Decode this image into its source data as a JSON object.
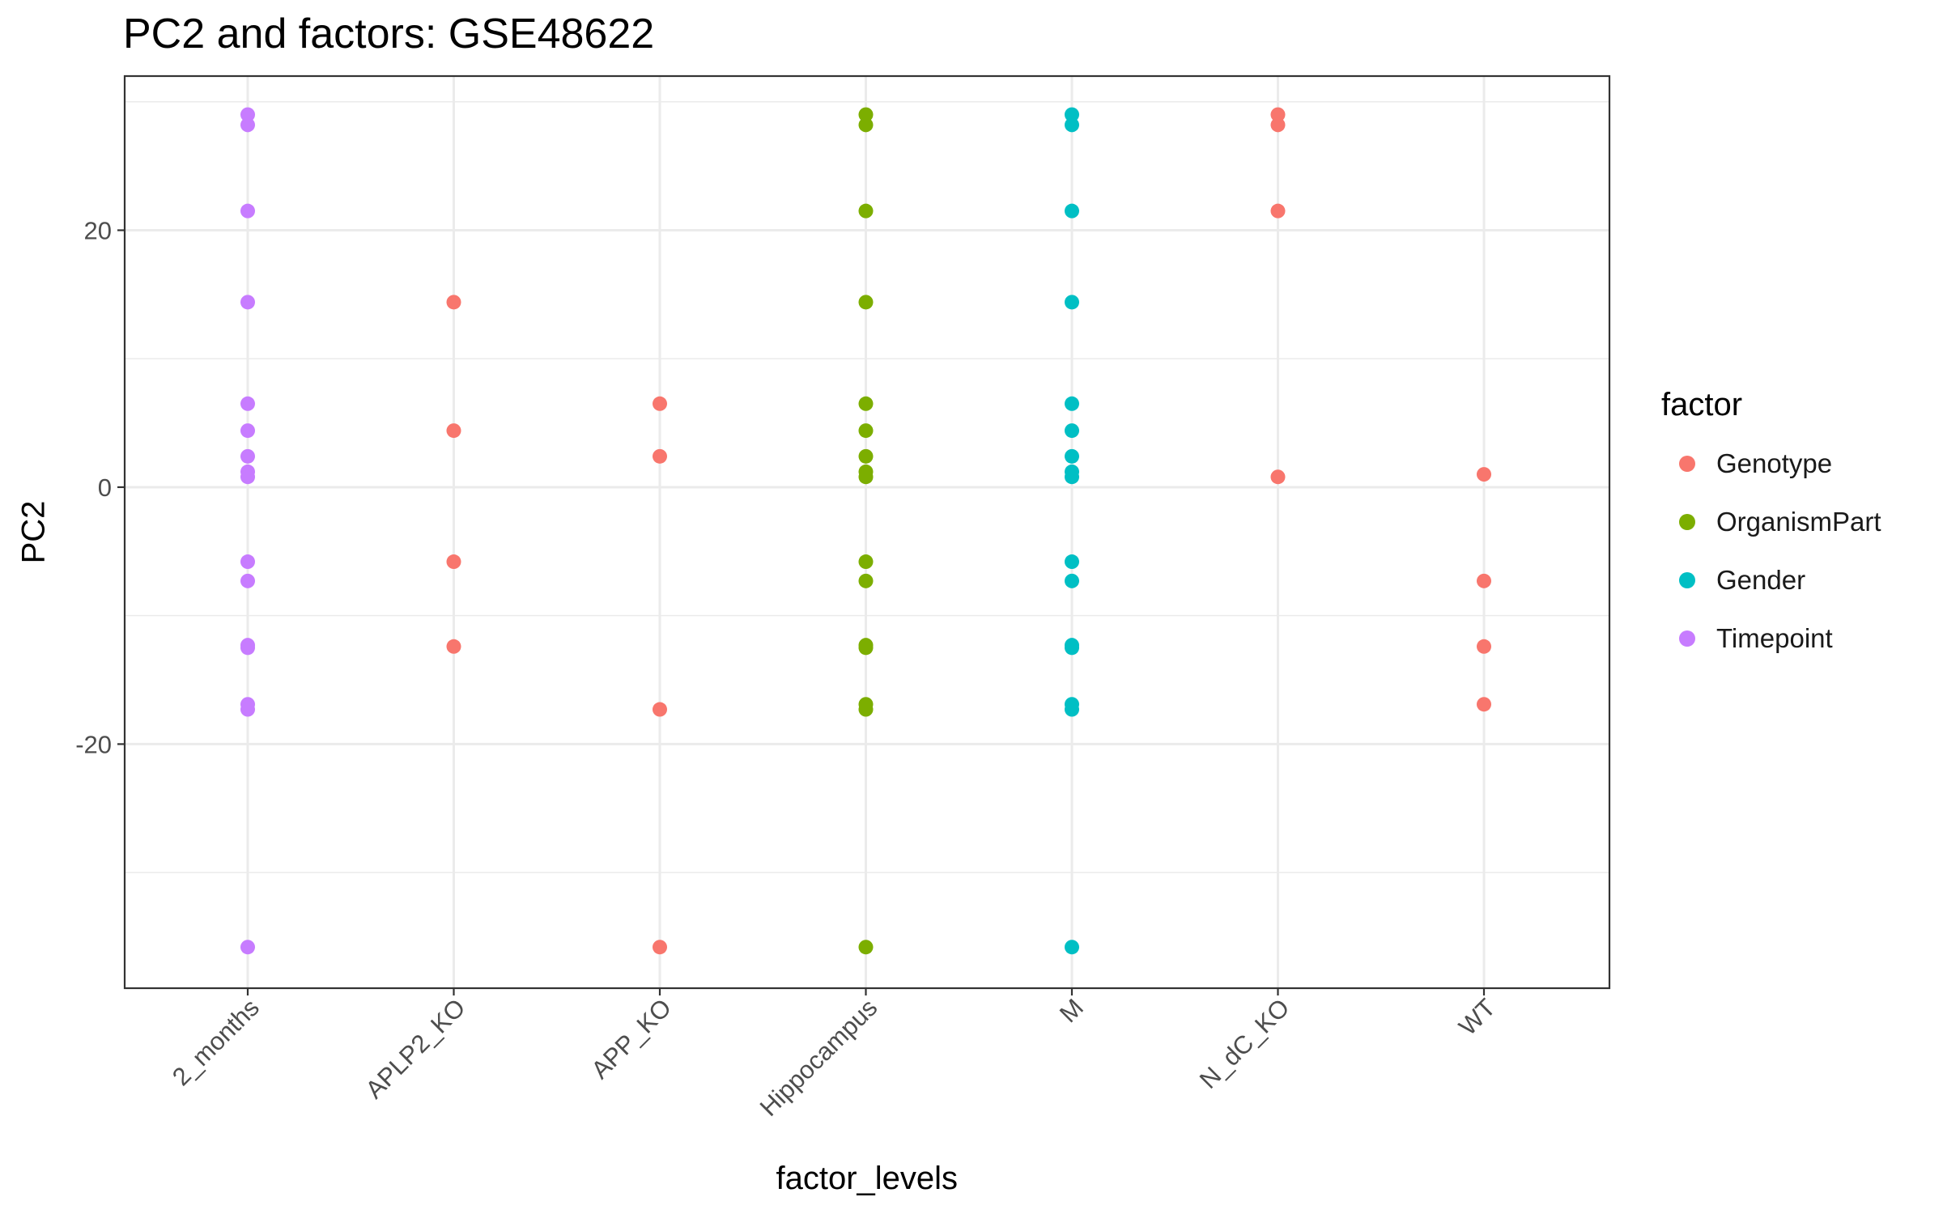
{
  "chart_data": {
    "type": "scatter",
    "title": "PC2 and factors: GSE48622",
    "xlabel": "factor_levels",
    "ylabel": "PC2",
    "categories": [
      "2_months",
      "APLP2_KO",
      "APP_KO",
      "Hippocampus",
      "M",
      "N_dC_KO",
      "WT"
    ],
    "y_ticks": [
      -20,
      0,
      20
    ],
    "y_tick_labels": [
      "-20",
      "0",
      "20"
    ],
    "ylim": [
      -39,
      32
    ],
    "grid": true,
    "legend_title": "factor",
    "legend_position": "right",
    "series": [
      {
        "name": "Genotype",
        "color": "#F8766D",
        "points": [
          {
            "x": "APLP2_KO",
            "y": 14.4
          },
          {
            "x": "APLP2_KO",
            "y": 4.4
          },
          {
            "x": "APLP2_KO",
            "y": -5.8
          },
          {
            "x": "APLP2_KO",
            "y": -12.4
          },
          {
            "x": "APP_KO",
            "y": 6.5
          },
          {
            "x": "APP_KO",
            "y": 2.4
          },
          {
            "x": "APP_KO",
            "y": -17.3
          },
          {
            "x": "APP_KO",
            "y": -35.8
          },
          {
            "x": "N_dC_KO",
            "y": 29.0
          },
          {
            "x": "N_dC_KO",
            "y": 28.2
          },
          {
            "x": "N_dC_KO",
            "y": 21.5
          },
          {
            "x": "N_dC_KO",
            "y": 0.8
          },
          {
            "x": "WT",
            "y": 1.0
          },
          {
            "x": "WT",
            "y": -7.3
          },
          {
            "x": "WT",
            "y": -12.4
          },
          {
            "x": "WT",
            "y": -16.9
          }
        ]
      },
      {
        "name": "OrganismPart",
        "color": "#7CAE00",
        "points": [
          {
            "x": "Hippocampus",
            "y": 29.0
          },
          {
            "x": "Hippocampus",
            "y": 28.2
          },
          {
            "x": "Hippocampus",
            "y": 21.5
          },
          {
            "x": "Hippocampus",
            "y": 14.4
          },
          {
            "x": "Hippocampus",
            "y": 6.5
          },
          {
            "x": "Hippocampus",
            "y": 4.4
          },
          {
            "x": "Hippocampus",
            "y": 2.4
          },
          {
            "x": "Hippocampus",
            "y": 1.2
          },
          {
            "x": "Hippocampus",
            "y": 0.8
          },
          {
            "x": "Hippocampus",
            "y": -5.8
          },
          {
            "x": "Hippocampus",
            "y": -7.3
          },
          {
            "x": "Hippocampus",
            "y": -12.3
          },
          {
            "x": "Hippocampus",
            "y": -12.5
          },
          {
            "x": "Hippocampus",
            "y": -16.9
          },
          {
            "x": "Hippocampus",
            "y": -17.3
          },
          {
            "x": "Hippocampus",
            "y": -35.8
          }
        ]
      },
      {
        "name": "Gender",
        "color": "#00BFC4",
        "points": [
          {
            "x": "M",
            "y": 29.0
          },
          {
            "x": "M",
            "y": 28.2
          },
          {
            "x": "M",
            "y": 21.5
          },
          {
            "x": "M",
            "y": 14.4
          },
          {
            "x": "M",
            "y": 6.5
          },
          {
            "x": "M",
            "y": 4.4
          },
          {
            "x": "M",
            "y": 2.4
          },
          {
            "x": "M",
            "y": 1.2
          },
          {
            "x": "M",
            "y": 0.8
          },
          {
            "x": "M",
            "y": -5.8
          },
          {
            "x": "M",
            "y": -7.3
          },
          {
            "x": "M",
            "y": -12.3
          },
          {
            "x": "M",
            "y": -12.5
          },
          {
            "x": "M",
            "y": -16.9
          },
          {
            "x": "M",
            "y": -17.3
          },
          {
            "x": "M",
            "y": -35.8
          }
        ]
      },
      {
        "name": "Timepoint",
        "color": "#C77CFF",
        "points": [
          {
            "x": "2_months",
            "y": 29.0
          },
          {
            "x": "2_months",
            "y": 28.2
          },
          {
            "x": "2_months",
            "y": 21.5
          },
          {
            "x": "2_months",
            "y": 14.4
          },
          {
            "x": "2_months",
            "y": 6.5
          },
          {
            "x": "2_months",
            "y": 4.4
          },
          {
            "x": "2_months",
            "y": 2.4
          },
          {
            "x": "2_months",
            "y": 1.2
          },
          {
            "x": "2_months",
            "y": 0.8
          },
          {
            "x": "2_months",
            "y": -5.8
          },
          {
            "x": "2_months",
            "y": -7.3
          },
          {
            "x": "2_months",
            "y": -12.3
          },
          {
            "x": "2_months",
            "y": -12.5
          },
          {
            "x": "2_months",
            "y": -16.9
          },
          {
            "x": "2_months",
            "y": -17.3
          },
          {
            "x": "2_months",
            "y": -35.8
          }
        ]
      }
    ]
  }
}
